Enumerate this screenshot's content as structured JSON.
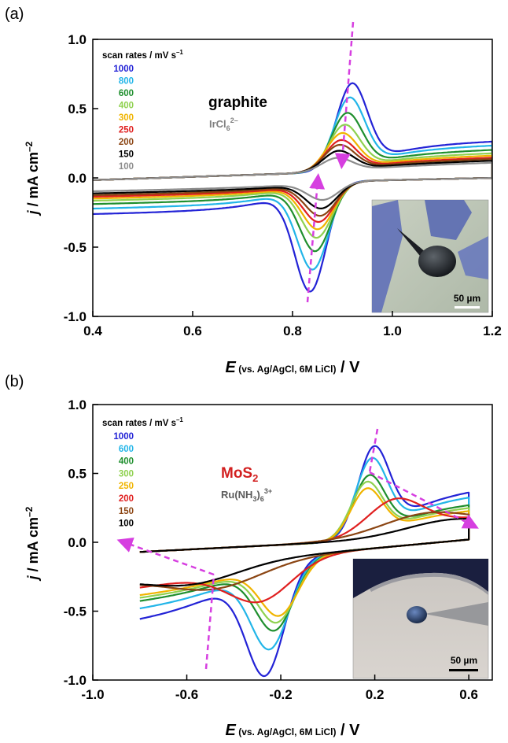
{
  "figure": {
    "panels": [
      {
        "label": "(a)",
        "material": "graphite",
        "material_color": "#000000",
        "redox_species_main": "IrCl",
        "redox_species_sub": "6",
        "redox_species_sup": "2–",
        "ylabel_symbol": "j",
        "ylabel_rest": " / mA cm",
        "ylabel_sup": "–2",
        "xlabel_symbol": "E",
        "xlabel_sub": " (vs. Ag/AgCl, 6M LiCl)",
        "xlabel_rest": " / V",
        "legend_title": "scan rates / mV s",
        "legend_title_sup": "–1",
        "scale_bar": "50 µm",
        "xticks": [
          "0.4",
          "0.6",
          "0.8",
          "1.0",
          "1.2"
        ],
        "yticks": [
          "1.0",
          "0.5",
          "0.0",
          "-0.5",
          "-1.0"
        ]
      },
      {
        "label": "(b)",
        "material_main": "MoS",
        "material_sub": "2",
        "material_color": "#d21f1f",
        "redox_species_main": "Ru(NH",
        "redox_species_sub1": "3",
        "redox_species_mid": ")",
        "redox_species_sub2": "6",
        "redox_species_sup": "3+",
        "ylabel_symbol": "j",
        "ylabel_rest": " / mA cm",
        "ylabel_sup": "–2",
        "xlabel_symbol": "E",
        "xlabel_sub": " (vs. Ag/AgCl, 6M LiCl)",
        "xlabel_rest": " / V",
        "legend_title": "scan rates / mV s",
        "legend_title_sup": "–1",
        "scale_bar": "50 µm",
        "xticks": [
          "-1.0",
          "-0.6",
          "-0.2",
          "0.2",
          "0.6"
        ],
        "yticks": [
          "1.0",
          "0.5",
          "0.0",
          "-0.5",
          "-1.0"
        ]
      }
    ]
  },
  "chart_data": [
    {
      "type": "line",
      "panel": "(a)",
      "xlim": [
        0.4,
        1.2
      ],
      "ylim": [
        -1.0,
        1.0
      ],
      "grid": false,
      "legend_position": "top-left",
      "series": [
        {
          "name": "1000",
          "color": "#2323d6",
          "ipa": 0.75,
          "ipc": -0.9,
          "epa": 0.92,
          "epc": 0.835
        },
        {
          "name": "800",
          "color": "#22b5e8",
          "ipa": 0.63,
          "ipc": -0.72,
          "epa": 0.915,
          "epc": 0.84
        },
        {
          "name": "600",
          "color": "#1f8f2e",
          "ipa": 0.5,
          "ipc": -0.57,
          "epa": 0.91,
          "epc": 0.845
        },
        {
          "name": "400",
          "color": "#8fd14f",
          "ipa": 0.4,
          "ipc": -0.46,
          "epa": 0.905,
          "epc": 0.848
        },
        {
          "name": "300",
          "color": "#f0b400",
          "ipa": 0.33,
          "ipc": -0.39,
          "epa": 0.9,
          "epc": 0.85
        },
        {
          "name": "250",
          "color": "#e02020",
          "ipa": 0.27,
          "ipc": -0.33,
          "epa": 0.898,
          "epc": 0.852
        },
        {
          "name": "200",
          "color": "#8b4513",
          "ipa": 0.23,
          "ipc": -0.28,
          "epa": 0.895,
          "epc": 0.855
        },
        {
          "name": "150",
          "color": "#000000",
          "ipa": 0.18,
          "ipc": -0.22,
          "epa": 0.893,
          "epc": 0.857
        },
        {
          "name": "100",
          "color": "#8c8c8c",
          "ipa": 0.12,
          "ipc": -0.15,
          "epa": 0.89,
          "epc": 0.86
        }
      ]
    },
    {
      "type": "line",
      "panel": "(b)",
      "xlim": [
        -1.0,
        0.7
      ],
      "ylim": [
        -1.0,
        1.0
      ],
      "grid": false,
      "legend_position": "top-left",
      "series": [
        {
          "name": "1000",
          "color": "#2323d6",
          "ipa": 0.72,
          "ipc": -0.9,
          "epa": 0.2,
          "epc": -0.27
        },
        {
          "name": "600",
          "color": "#22b5e8",
          "ipa": 0.63,
          "ipc": -0.7,
          "epa": 0.19,
          "epc": -0.25
        },
        {
          "name": "400",
          "color": "#1f8f2e",
          "ipa": 0.5,
          "ipc": -0.56,
          "epa": 0.18,
          "epc": -0.23
        },
        {
          "name": "300",
          "color": "#8fd14f",
          "ipa": 0.45,
          "ipc": -0.5,
          "epa": 0.17,
          "epc": -0.22
        },
        {
          "name": "250",
          "color": "#f0b400",
          "ipa": 0.4,
          "ipc": -0.45,
          "epa": 0.17,
          "epc": -0.21
        },
        {
          "name": "200",
          "color": "#e02020",
          "ipa": 0.31,
          "ipc": -0.33,
          "epa": 0.3,
          "epc": -0.3
        },
        {
          "name": "150",
          "color": "#8b4513",
          "ipa": 0.19,
          "ipc": -0.2,
          "epa": 0.45,
          "epc": -0.5
        },
        {
          "name": "100",
          "color": "#000000",
          "ipa": 0.13,
          "ipc": -0.15,
          "epa": 0.55,
          "epc": -0.6
        }
      ]
    }
  ]
}
